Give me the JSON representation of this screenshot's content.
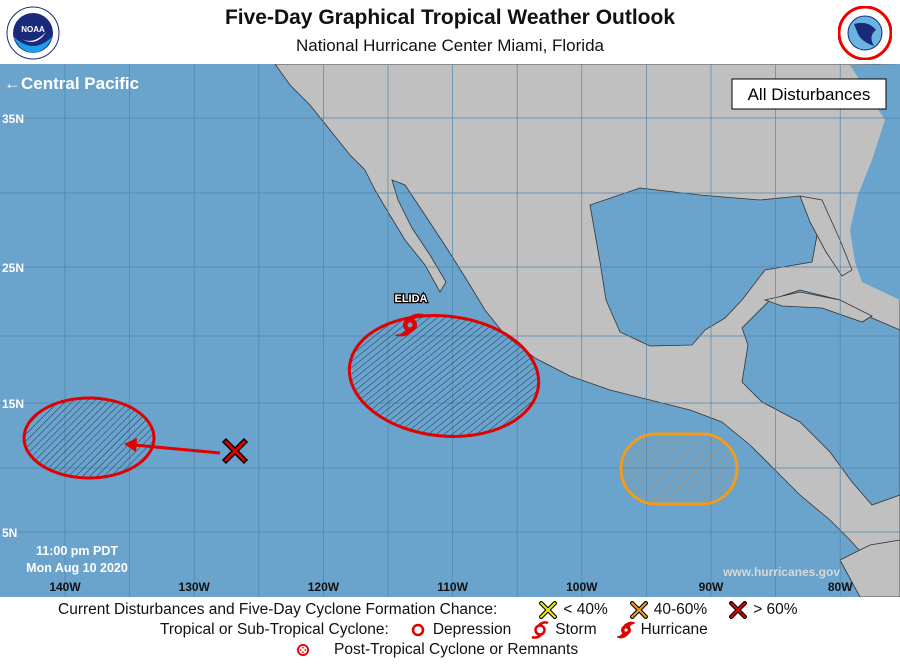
{
  "header": {
    "title": "Five-Day Graphical Tropical Weather Outlook",
    "subtitle": "National Hurricane Center  Miami, Florida",
    "left_logo": "NOAA",
    "right_logo": "NATIONAL WEATHER SERVICE"
  },
  "map": {
    "nav_link": "Central Pacific",
    "filter_button": "All Disturbances",
    "lat_labels": [
      "35N",
      "25N",
      "15N",
      "5N"
    ],
    "lon_labels": [
      "140W",
      "130W",
      "120W",
      "110W",
      "100W",
      "90W",
      "80W"
    ],
    "timestamp_line1": "11:00 pm PDT",
    "timestamp_line2": "Mon Aug 10 2020",
    "watermark": "www.hurricanes.gov",
    "storm_label": "ELIDA",
    "colors": {
      "ocean": "#6aa3cb",
      "land": "#c0c0c0",
      "high": "#e00000",
      "medium": "#f39b1c",
      "low": "#f2f200"
    },
    "disturbances": [
      {
        "category": "> 60%",
        "color": "#e00000"
      },
      {
        "category": "> 60%",
        "color": "#e00000",
        "note": "area near ELIDA"
      },
      {
        "category": "40-60%",
        "color": "#f39b1c"
      }
    ]
  },
  "legend": {
    "row1_label": "Current Disturbances and Five-Day Cyclone Formation Chance:",
    "low": "< 40%",
    "medium": "40-60%",
    "high": "> 60%",
    "row2_label": "Tropical or Sub-Tropical Cyclone:",
    "depression": "Depression",
    "storm": "Storm",
    "hurricane": "Hurricane",
    "post_tropical": "Post-Tropical Cyclone or Remnants"
  }
}
